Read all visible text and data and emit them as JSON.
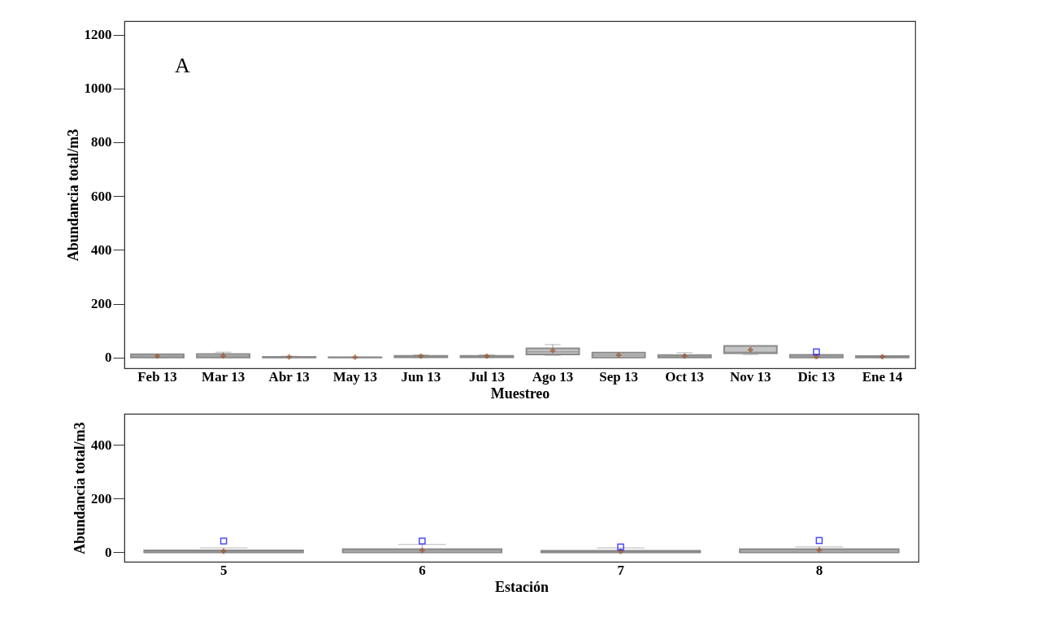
{
  "chart_data": [
    {
      "type": "box",
      "ylabel": "Abundancia total/m3",
      "xlabel": "Muestreo",
      "annotations": [
        "A"
      ],
      "categories": [
        "Feb 13",
        "Mar 13",
        "Abr 13",
        "May 13",
        "Jun 13",
        "Jul 13",
        "Ago 13",
        "Sep 13",
        "Oct 13",
        "Nov 13",
        "Dic 13",
        "Ene 14"
      ],
      "boxes": [
        {
          "low": 0,
          "q1": 0,
          "median": 5,
          "q3": 12,
          "high": 12,
          "mean": 5
        },
        {
          "low": 0,
          "q1": 0,
          "median": 5,
          "q3": 13,
          "high": 20,
          "mean": 6
        },
        {
          "low": 0,
          "q1": 0,
          "median": 1,
          "q3": 2,
          "high": 5,
          "mean": 2
        },
        {
          "low": 0,
          "q1": 0,
          "median": 1,
          "q3": 1,
          "high": 1,
          "mean": 1
        },
        {
          "low": 0,
          "q1": 1,
          "median": 3,
          "q3": 6,
          "high": 10,
          "mean": 5
        },
        {
          "low": 0,
          "q1": 1,
          "median": 3,
          "q3": 6,
          "high": 10,
          "mean": 5
        },
        {
          "low": 8,
          "q1": 11,
          "median": 21,
          "q3": 34,
          "high": 48,
          "mean": 26
        },
        {
          "low": 0,
          "q1": 0,
          "median": 9,
          "q3": 18,
          "high": 18,
          "mean": 9
        },
        {
          "low": 0,
          "q1": 0,
          "median": 4,
          "q3": 9,
          "high": 18,
          "mean": 5
        },
        {
          "low": 11,
          "q1": 16,
          "median": 20,
          "q3": 43,
          "high": 43,
          "mean": 29
        },
        {
          "low": 0,
          "q1": 0,
          "median": 5,
          "q3": 10,
          "high": 10,
          "mean": 3,
          "outliers": [
            21
          ]
        },
        {
          "low": 0,
          "q1": 0,
          "median": 2,
          "q3": 5,
          "high": 7,
          "mean": 3
        }
      ],
      "ylim": [
        -40,
        1250
      ],
      "yticks": [
        0,
        200,
        400,
        600,
        800,
        1000,
        1200
      ],
      "grid": false
    },
    {
      "type": "box",
      "ylabel": "Abundancia total/m3",
      "xlabel": "Estación",
      "categories": [
        "5",
        "6",
        "7",
        "8"
      ],
      "boxes": [
        {
          "low": 0,
          "q1": 0,
          "median": 4,
          "q3": 7,
          "high": 16,
          "mean": 4,
          "outliers": [
            42
          ]
        },
        {
          "low": 0,
          "q1": 0,
          "median": 7,
          "q3": 12,
          "high": 29,
          "mean": 7,
          "outliers": [
            42
          ]
        },
        {
          "low": 0,
          "q1": 0,
          "median": 3,
          "q3": 6,
          "high": 16,
          "mean": 3,
          "outliers": [
            20
          ]
        },
        {
          "low": 0,
          "q1": 0,
          "median": 8,
          "q3": 12,
          "high": 20,
          "mean": 8,
          "outliers": [
            44
          ]
        }
      ],
      "ylim": [
        -35,
        515
      ],
      "yticks": [
        0,
        200,
        400
      ],
      "grid": false
    }
  ]
}
